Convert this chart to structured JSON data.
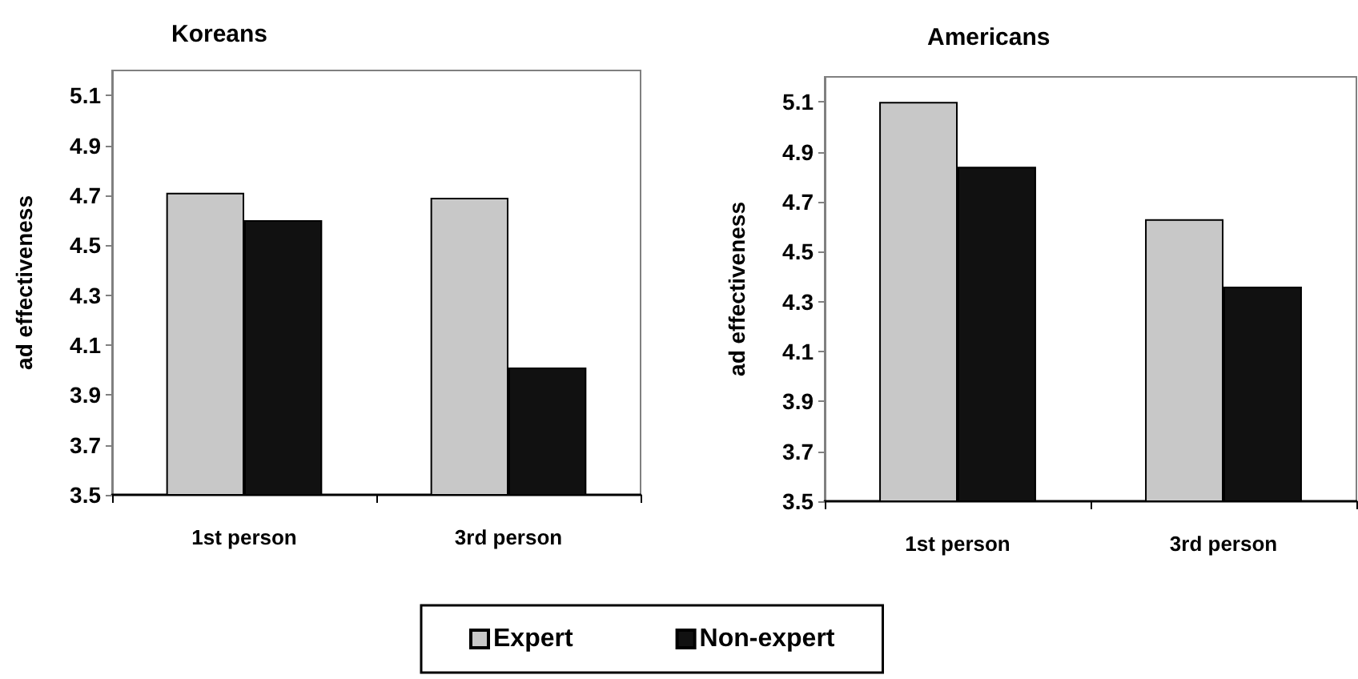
{
  "chart_data": [
    {
      "type": "bar",
      "title": "Koreans",
      "ylabel": "ad effectiveness",
      "categories": [
        "1st person",
        "3rd person"
      ],
      "series": [
        {
          "name": "Expert",
          "color": "#c8c8c8",
          "values": [
            4.71,
            4.69
          ]
        },
        {
          "name": "Non-expert",
          "color": "#111111",
          "values": [
            4.6,
            4.01
          ]
        }
      ],
      "ylim": [
        3.5,
        5.2
      ],
      "yticks": [
        3.5,
        3.7,
        3.9,
        4.1,
        4.3,
        4.5,
        4.7,
        4.9,
        5.1
      ],
      "legend": "bottom"
    },
    {
      "type": "bar",
      "title": "Americans",
      "ylabel": "ad effectiveness",
      "categories": [
        "1st person",
        "3rd person"
      ],
      "series": [
        {
          "color": "#c8c8c8",
          "values": [
            5.1,
            4.63
          ]
        },
        {
          "color": "#111111",
          "values": [
            4.84,
            4.36
          ]
        }
      ],
      "ylim": [
        3.5,
        5.2
      ],
      "yticks": [
        3.5,
        3.7,
        3.9,
        4.1,
        4.3,
        4.5,
        4.7,
        4.9,
        5.1
      ]
    }
  ]
}
